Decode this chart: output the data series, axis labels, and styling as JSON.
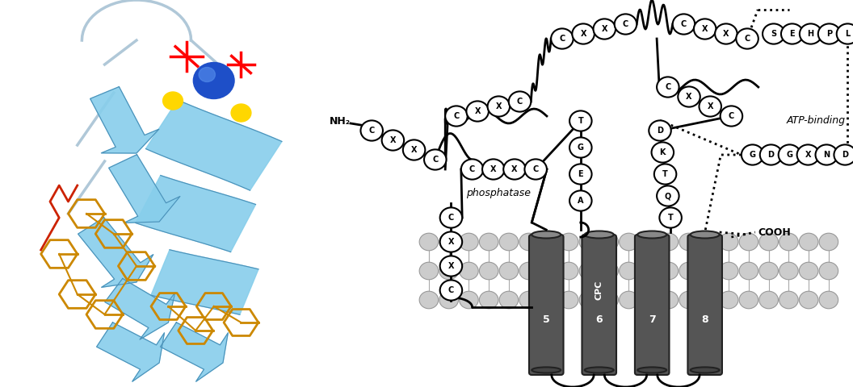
{
  "figure_width": 10.56,
  "figure_height": 4.8,
  "dpi": 100,
  "bg_color": "#ffffff",
  "membrane_color": "#cccccc",
  "membrane_dark": "#999999",
  "helix_color": "#555555",
  "helix_dark": "#333333",
  "circle_labels": [
    "CXXC",
    "CXXC",
    "CXXC",
    "CXXC",
    "CXXC",
    "CXXC"
  ],
  "small_circle_labels_v": [
    "C",
    "X",
    "X",
    "C"
  ],
  "small_circle_labels_h": [
    "T",
    "G",
    "E",
    "A"
  ],
  "small_circle_labels_d": [
    "D",
    "K",
    "T",
    "Q",
    "T"
  ],
  "gdgxnd_labels": [
    "G",
    "D",
    "G",
    "X",
    "N",
    "D"
  ],
  "sehpl_labels": [
    "S",
    "E",
    "H",
    "P",
    "L"
  ],
  "cpc_label": "CPC",
  "phosphatase_label": "phosphatase",
  "atp_binding_label": "ATP-binding",
  "nh2_label": "NH₂",
  "cooh_label": "COOH",
  "helix_numbers": [
    "5",
    "6",
    "7",
    "8"
  ],
  "line_color": "#000000",
  "dotted_color": "#333333"
}
